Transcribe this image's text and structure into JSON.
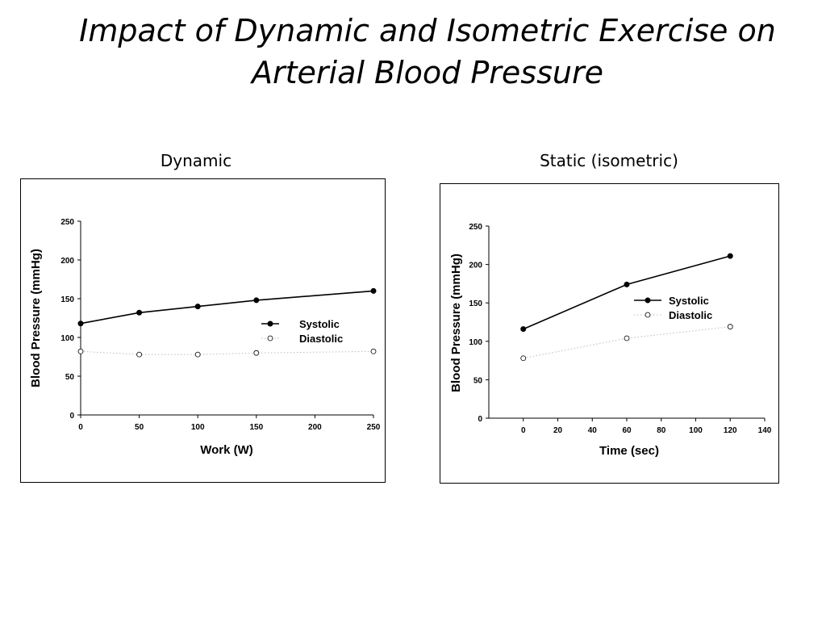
{
  "slide": {
    "title_line1": "Impact of Dynamic and Isometric Exercise on",
    "title_line2": "Arterial Blood Pressure"
  },
  "chart_data": [
    {
      "type": "line",
      "caption": "Dynamic",
      "xlabel": "Work (W)",
      "ylabel": "Blood Pressure (mmHg)",
      "xlim": [
        0,
        250
      ],
      "ylim": [
        0,
        250
      ],
      "xticks": [
        0,
        50,
        100,
        150,
        200,
        250
      ],
      "yticks": [
        0,
        50,
        100,
        150,
        200,
        250
      ],
      "legend_position": "right",
      "series": [
        {
          "name": "Systolic",
          "style": "solid-filled",
          "x": [
            0,
            50,
            100,
            150,
            250
          ],
          "values": [
            118,
            132,
            140,
            148,
            160
          ]
        },
        {
          "name": "Diastolic",
          "style": "dotted-open",
          "x": [
            0,
            50,
            100,
            150,
            250
          ],
          "values": [
            82,
            78,
            78,
            80,
            82
          ]
        }
      ]
    },
    {
      "type": "line",
      "caption": "Static (isometric)",
      "xlabel": "Time (sec)",
      "ylabel": "Blood Pressure (mmHg)",
      "xlim": [
        -20,
        140
      ],
      "ylim": [
        0,
        250
      ],
      "xticks": [
        0,
        20,
        40,
        60,
        80,
        100,
        120,
        140
      ],
      "yticks": [
        0,
        50,
        100,
        150,
        200,
        250
      ],
      "legend_position": "right",
      "series": [
        {
          "name": "Systolic",
          "style": "solid-filled",
          "x": [
            0,
            60,
            120
          ],
          "values": [
            116,
            174,
            211
          ]
        },
        {
          "name": "Diastolic",
          "style": "dotted-open",
          "x": [
            0,
            60,
            120
          ],
          "values": [
            78,
            104,
            119
          ]
        }
      ]
    }
  ]
}
